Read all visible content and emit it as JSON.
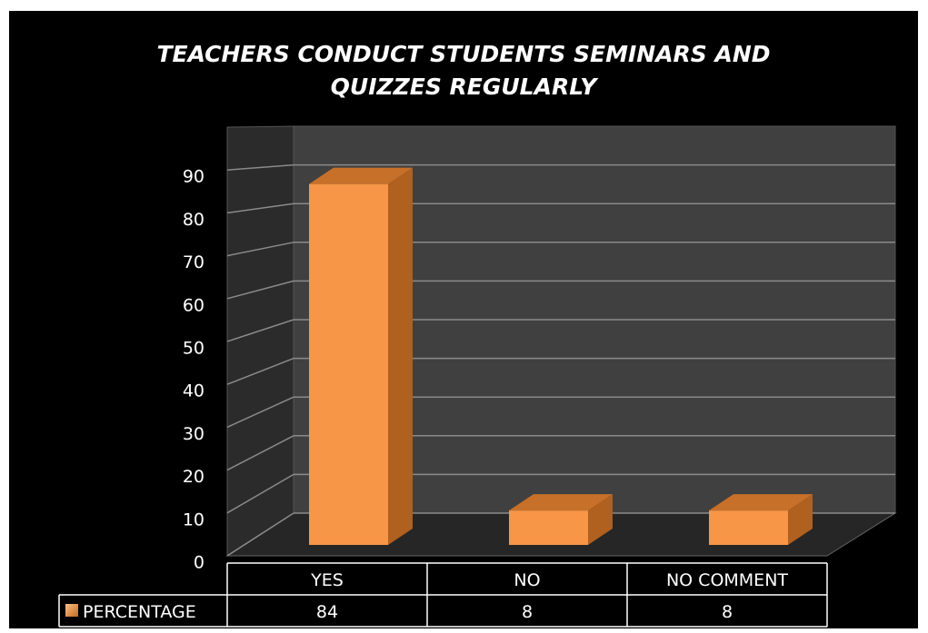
{
  "chart_data": {
    "type": "bar3d",
    "title": "TEACHERS CONDUCT STUDENTS SEMINARS AND QUIZZES REGULARLY",
    "categories": [
      "YES",
      "NO",
      "NO COMMENT"
    ],
    "series": [
      {
        "name": "PERCENTAGE",
        "color": "#f79646",
        "values": [
          84,
          8,
          8
        ]
      }
    ],
    "ylim": [
      0,
      100
    ],
    "yticks": [
      0,
      10,
      20,
      30,
      40,
      50,
      60,
      70,
      80,
      90
    ],
    "grid": true,
    "legend": "data-table"
  }
}
